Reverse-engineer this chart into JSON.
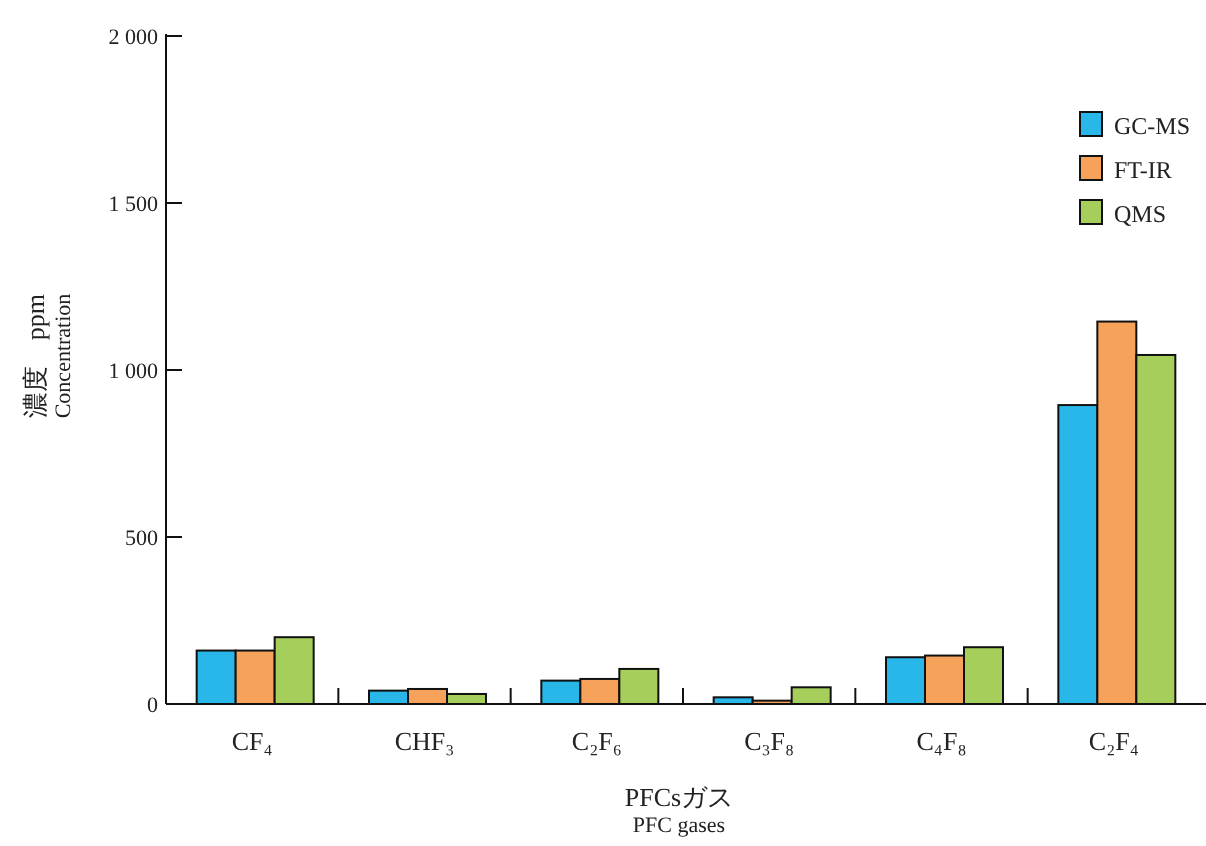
{
  "chart_data": {
    "type": "bar",
    "xlabel": "PFCsガス\nPFC gases",
    "ylabel": "濃度　ppm\nConcentration",
    "categories": [
      "CF₄",
      "CHF₃",
      "C₂F₆",
      "C₃F₈",
      "C₄F₈",
      "C₂F₄"
    ],
    "series": [
      {
        "name": "GC-MS",
        "color": "#29b6e8",
        "values": [
          160,
          40,
          70,
          20,
          140,
          895
        ]
      },
      {
        "name": "FT-IR",
        "color": "#f7a25a",
        "values": [
          160,
          45,
          75,
          10,
          145,
          1145
        ]
      },
      {
        "name": "QMS",
        "color": "#a5cf5a",
        "values": [
          200,
          30,
          105,
          50,
          170,
          1045
        ]
      }
    ],
    "ylim": [
      0,
      2000
    ],
    "yticks": [
      0,
      500,
      {
        "value": 1000,
        "label": "1 000"
      },
      {
        "value": 1500,
        "label": "1 500"
      },
      {
        "value": 2000,
        "label": "2 000"
      }
    ],
    "legend": "top right",
    "grid": false
  }
}
